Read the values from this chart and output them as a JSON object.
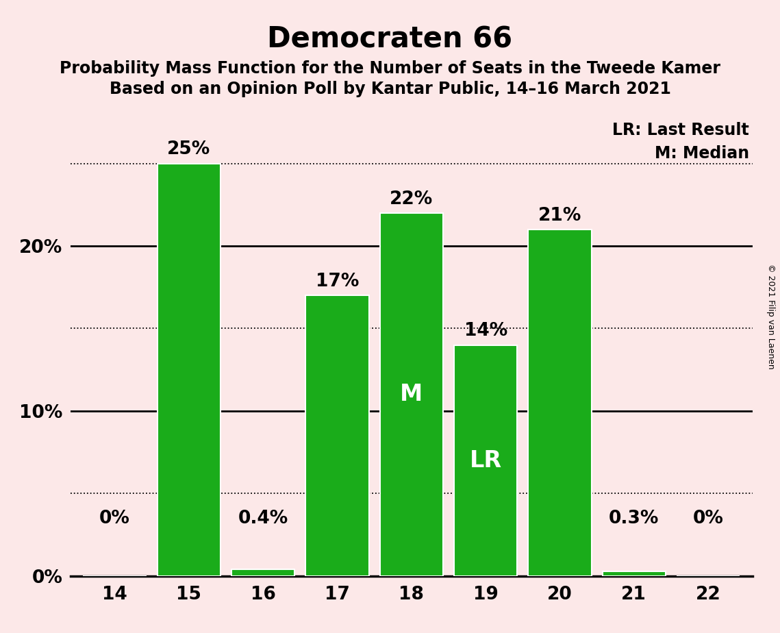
{
  "title": "Democraten 66",
  "subtitle1": "Probability Mass Function for the Number of Seats in the Tweede Kamer",
  "subtitle2": "Based on an Opinion Poll by Kantar Public, 14–16 March 2021",
  "copyright": "© 2021 Filip van Laenen",
  "categories": [
    14,
    15,
    16,
    17,
    18,
    19,
    20,
    21,
    22
  ],
  "values": [
    0.0,
    25.0,
    0.4,
    17.0,
    22.0,
    14.0,
    21.0,
    0.3,
    0.0
  ],
  "labels": [
    "0%",
    "25%",
    "0.4%",
    "17%",
    "22%",
    "14%",
    "21%",
    "0.3%",
    "0%"
  ],
  "bar_color": "#1aac1a",
  "background_color": "#fce8e8",
  "bar_edge_color": "#ffffff",
  "median_bar": 18,
  "lr_bar": 19,
  "median_label": "M",
  "lr_label": "LR",
  "legend_lr": "LR: Last Result",
  "legend_m": "M: Median",
  "ytick_positions": [
    0,
    10,
    20
  ],
  "ytick_labels": [
    "0%",
    "10%",
    "20%"
  ],
  "dotted_lines": [
    5,
    15,
    25
  ],
  "solid_lines": [
    0,
    10,
    20
  ],
  "ylim": [
    0,
    28
  ],
  "title_fontsize": 30,
  "subtitle_fontsize": 17,
  "axis_fontsize": 19,
  "bar_label_fontsize": 19,
  "inner_label_fontsize": 24,
  "legend_fontsize": 17,
  "copyright_fontsize": 9
}
